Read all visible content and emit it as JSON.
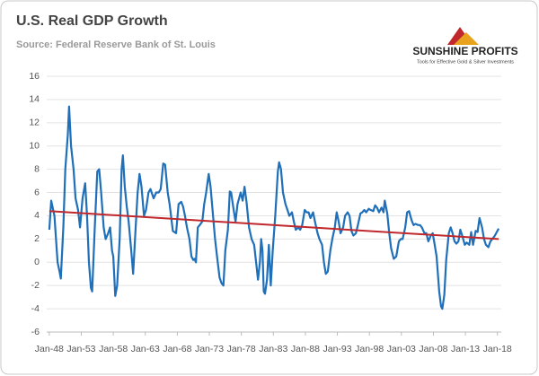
{
  "chart_data": {
    "type": "line",
    "title": "U.S. Real GDP Growth",
    "subtitle": "Source: Federal Reserve Bank of St. Louis",
    "logo": {
      "name": "SUNSHINE PROFITS",
      "tagline": "Tools for Effective Gold & Silver Investments"
    },
    "x": [
      1948,
      1948.3,
      1948.8,
      1949.3,
      1949.6,
      1949.8,
      1950.2,
      1950.5,
      1950.9,
      1951.1,
      1951.4,
      1951.8,
      1952.1,
      1952.5,
      1952.8,
      1953.2,
      1953.6,
      1953.9,
      1954.2,
      1954.5,
      1954.7,
      1955.1,
      1955.5,
      1955.8,
      1956.1,
      1956.5,
      1956.8,
      1957.2,
      1957.5,
      1957.8,
      1958,
      1958.3,
      1958.6,
      1959,
      1959.3,
      1959.5,
      1959.8,
      1960.1,
      1960.4,
      1960.8,
      1961.1,
      1961.4,
      1961.8,
      1962.1,
      1962.4,
      1962.8,
      1963.1,
      1963.5,
      1963.8,
      1964.3,
      1964.7,
      1965.1,
      1965.4,
      1965.8,
      1966.1,
      1966.5,
      1966.8,
      1967.3,
      1967.8,
      1968.2,
      1968.6,
      1968.9,
      1969.2,
      1969.5,
      1969.9,
      1970.2,
      1970.5,
      1970.7,
      1970.9,
      1971.2,
      1971.5,
      1971.9,
      1972.2,
      1972.5,
      1972.9,
      1973.2,
      1973.5,
      1973.9,
      1974.2,
      1974.6,
      1974.9,
      1975.2,
      1975.5,
      1975.9,
      1976.2,
      1976.4,
      1976.8,
      1977.1,
      1977.4,
      1977.9,
      1978.2,
      1978.5,
      1978.8,
      1979.2,
      1979.6,
      1980,
      1980.4,
      1980.6,
      1980.9,
      1981.1,
      1981.3,
      1981.5,
      1981.7,
      1982,
      1982.3,
      1982.6,
      1982.9,
      1983.3,
      1983.7,
      1983.9,
      1984.2,
      1984.5,
      1984.9,
      1985.2,
      1985.5,
      1985.9,
      1986.2,
      1986.5,
      1986.9,
      1987.2,
      1987.5,
      1987.9,
      1988.2,
      1988.5,
      1988.8,
      1989.2,
      1989.5,
      1989.9,
      1990.2,
      1990.6,
      1990.9,
      1991.2,
      1991.5,
      1991.9,
      1992.2,
      1992.6,
      1992.9,
      1993.2,
      1993.5,
      1993.9,
      1994.2,
      1994.6,
      1994.9,
      1995.2,
      1995.5,
      1995.9,
      1996.2,
      1996.6,
      1996.9,
      1997.2,
      1997.5,
      1997.9,
      1998.2,
      1998.6,
      1998.9,
      1999.2,
      1999.5,
      1999.9,
      2000.2,
      2000.4,
      2000.8,
      2001.1,
      2001.4,
      2001.8,
      2002.2,
      2002.6,
      2002.9,
      2003.2,
      2003.6,
      2003.9,
      2004.2,
      2004.6,
      2004.9,
      2005.2,
      2005.6,
      2005.9,
      2006.2,
      2006.6,
      2006.9,
      2007.2,
      2007.6,
      2007.9,
      2008.2,
      2008.5,
      2008.9,
      2009.2,
      2009.4,
      2009.7,
      2010,
      2010.4,
      2010.7,
      2011,
      2011.3,
      2011.6,
      2011.9,
      2012.2,
      2012.5,
      2012.9,
      2013.2,
      2013.6,
      2013.9,
      2014.2,
      2014.6,
      2014.9,
      2015.2,
      2015.6,
      2015.9,
      2016.2,
      2016.6,
      2016.9,
      2017.2,
      2017.6,
      2017.9,
      2018.2
    ],
    "series": [
      {
        "color": "#1f6fb9",
        "values": [
          2.8,
          5.3,
          4,
          0,
          -0.8,
          -1.4,
          3,
          8,
          11,
          13.4,
          10,
          8,
          5.5,
          4.5,
          3,
          5.5,
          6.8,
          4,
          0,
          -2.2,
          -2.5,
          3,
          7.8,
          8,
          6,
          3,
          2,
          2.5,
          3,
          1,
          0.5,
          -2.9,
          -2,
          2,
          8,
          9.2,
          6.5,
          4.8,
          3.5,
          1,
          -1,
          2,
          6,
          7.6,
          6.5,
          4,
          4.5,
          6,
          6.3,
          5.5,
          6,
          6,
          6.3,
          8.5,
          8.4,
          6,
          5,
          2.7,
          2.5,
          5,
          5.2,
          4.8,
          4,
          3,
          2,
          0.5,
          0.2,
          0.3,
          0,
          3,
          3.2,
          3.5,
          5,
          6,
          7.6,
          6.5,
          4.5,
          2,
          0.5,
          -1.3,
          -1.8,
          -2,
          1,
          2.8,
          6.1,
          6,
          4.5,
          3.5,
          5,
          6,
          5.3,
          6.5,
          5.2,
          3,
          2,
          1.5,
          -0.5,
          -1.5,
          0,
          2,
          1,
          -2.5,
          -2.7,
          -1.5,
          1.5,
          -2,
          1,
          4,
          7.8,
          8.6,
          8,
          6,
          5,
          4.5,
          4,
          4.3,
          3.5,
          2.8,
          3,
          2.8,
          3.2,
          4.5,
          4.3,
          4.3,
          3.8,
          4.3,
          3.5,
          2.5,
          2,
          1.5,
          0,
          -1,
          -0.8,
          1,
          2,
          3,
          4.3,
          3.5,
          2.5,
          3,
          4,
          4.3,
          4,
          2.7,
          2.3,
          2.5,
          3.2,
          4.2,
          4.3,
          4.5,
          4.3,
          4.6,
          4.5,
          4.4,
          4.9,
          4.7,
          4.3,
          4.7,
          4.3,
          5.3,
          4.2,
          2.5,
          1.2,
          0.3,
          0.5,
          1.8,
          2,
          2,
          3,
          4.3,
          4.4,
          3.6,
          3.2,
          3.3,
          3.2,
          3.2,
          3,
          2.5,
          2.5,
          1.8,
          2.3,
          2.5,
          1.5,
          0.5,
          -2.5,
          -3.8,
          -4,
          -2.8,
          0.2,
          2.5,
          3,
          2.5,
          1.8,
          1.6,
          1.8,
          2.8,
          2.3,
          1.5,
          1.7,
          1.5,
          2.6,
          1.5,
          2.7,
          2.6,
          3.8,
          3,
          2,
          1.5,
          1.3,
          1.8,
          2,
          2.3,
          2.6,
          2.9
        ]
      }
    ],
    "trend": {
      "color": "#c0282d",
      "x": [
        1948,
        2018.2
      ],
      "values": [
        4.4,
        2.0
      ]
    },
    "xlim": [
      1947.6,
      2018.6
    ],
    "xticks": [
      {
        "value": 1948,
        "label": "Jan-48"
      },
      {
        "value": 1953,
        "label": "Jan-53"
      },
      {
        "value": 1958,
        "label": "Jan-58"
      },
      {
        "value": 1963,
        "label": "Jan-63"
      },
      {
        "value": 1968,
        "label": "Jan-68"
      },
      {
        "value": 1973,
        "label": "Jan-73"
      },
      {
        "value": 1978,
        "label": "Jan-78"
      },
      {
        "value": 1983,
        "label": "Jan-83"
      },
      {
        "value": 1988,
        "label": "Jan-88"
      },
      {
        "value": 1993,
        "label": "Jan-93"
      },
      {
        "value": 1998,
        "label": "Jan-98"
      },
      {
        "value": 2003,
        "label": "Jan-03"
      },
      {
        "value": 2008,
        "label": "Jan-08"
      },
      {
        "value": 2013,
        "label": "Jan-13"
      },
      {
        "value": 2018,
        "label": "Jan-18"
      }
    ],
    "ylim": [
      -6,
      16
    ],
    "yticks": [
      -6,
      -4,
      -2,
      0,
      2,
      4,
      6,
      8,
      10,
      12,
      14,
      16
    ],
    "grid": true
  }
}
